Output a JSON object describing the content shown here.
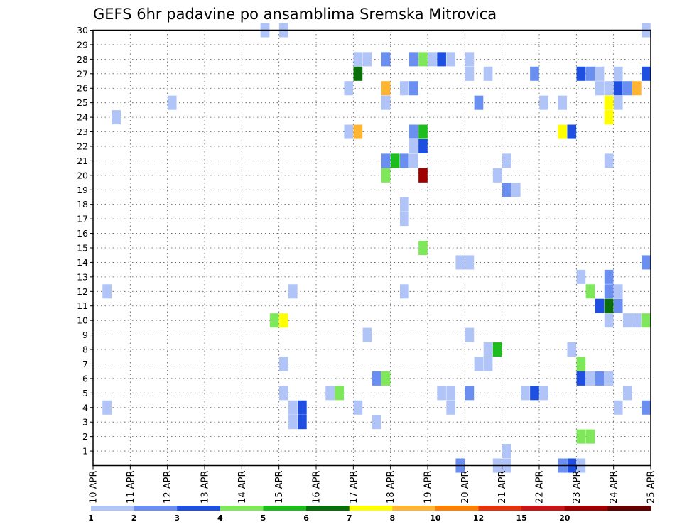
{
  "chart_data": {
    "type": "heatmap",
    "title": "GEFS 6hr padavine po ansamblima Sremska Mitrovica",
    "xlabel": "",
    "ylabel": "",
    "x_tick_labels": [
      "10 APR",
      "11 APR",
      "12 APR",
      "13 APR",
      "14 APR",
      "15 APR",
      "16 APR",
      "17 APR",
      "18 APR",
      "19 APR",
      "20 APR",
      "21 APR",
      "22 APR",
      "23 APR",
      "24 APR",
      "25 APR"
    ],
    "y_tick_labels": [
      "1",
      "2",
      "3",
      "4",
      "5",
      "6",
      "7",
      "8",
      "9",
      "10",
      "11",
      "12",
      "13",
      "14",
      "15",
      "16",
      "17",
      "18",
      "19",
      "20",
      "21",
      "22",
      "23",
      "24",
      "25",
      "26",
      "27",
      "28",
      "29",
      "30"
    ],
    "xlim": [
      0,
      15
    ],
    "ylim": [
      0,
      30
    ],
    "grid": true,
    "color_scale": {
      "colors": [
        "#b0c4f7",
        "#6b8ff0",
        "#1f4fe0",
        "#7fe85a",
        "#1ebd1e",
        "#0a6e0a",
        "#ffff00",
        "#ffb532",
        "#ff7f00",
        "#e6320a",
        "#c81414",
        "#a00000",
        "#640000"
      ],
      "labels": [
        "1",
        "2",
        "3",
        "4",
        "5",
        "6",
        "7",
        "8",
        "10",
        "12",
        "15",
        "20"
      ]
    },
    "note": "each cell = one 6h step (x in days from 10 APR) for one ensemble member (y); value = precipitation class index",
    "cells": [
      {
        "x": 4.5,
        "y": 30,
        "c": 1
      },
      {
        "x": 5.0,
        "y": 30,
        "c": 1
      },
      {
        "x": 14.75,
        "y": 30,
        "c": 1
      },
      {
        "x": 7.0,
        "y": 28,
        "c": 1
      },
      {
        "x": 7.25,
        "y": 28,
        "c": 1
      },
      {
        "x": 7.75,
        "y": 28,
        "c": 2
      },
      {
        "x": 8.5,
        "y": 28,
        "c": 2
      },
      {
        "x": 8.75,
        "y": 28,
        "c": 4
      },
      {
        "x": 9.0,
        "y": 28,
        "c": 1
      },
      {
        "x": 9.25,
        "y": 28,
        "c": 3
      },
      {
        "x": 9.5,
        "y": 28,
        "c": 1
      },
      {
        "x": 10.0,
        "y": 28,
        "c": 1
      },
      {
        "x": 7.0,
        "y": 27,
        "c": 6
      },
      {
        "x": 10.0,
        "y": 27,
        "c": 1
      },
      {
        "x": 10.5,
        "y": 27,
        "c": 1
      },
      {
        "x": 11.75,
        "y": 27,
        "c": 2
      },
      {
        "x": 13.0,
        "y": 27,
        "c": 3
      },
      {
        "x": 13.25,
        "y": 27,
        "c": 2
      },
      {
        "x": 13.5,
        "y": 27,
        "c": 1
      },
      {
        "x": 14.0,
        "y": 27,
        "c": 1
      },
      {
        "x": 14.75,
        "y": 27,
        "c": 3
      },
      {
        "x": 6.75,
        "y": 26,
        "c": 1
      },
      {
        "x": 7.75,
        "y": 26,
        "c": 8
      },
      {
        "x": 8.25,
        "y": 26,
        "c": 1
      },
      {
        "x": 8.5,
        "y": 26,
        "c": 2
      },
      {
        "x": 13.5,
        "y": 26,
        "c": 1
      },
      {
        "x": 13.75,
        "y": 26,
        "c": 1
      },
      {
        "x": 14.0,
        "y": 26,
        "c": 3
      },
      {
        "x": 14.25,
        "y": 26,
        "c": 2
      },
      {
        "x": 14.5,
        "y": 26,
        "c": 8
      },
      {
        "x": 2.0,
        "y": 25,
        "c": 1
      },
      {
        "x": 7.75,
        "y": 25,
        "c": 1
      },
      {
        "x": 10.25,
        "y": 25,
        "c": 2
      },
      {
        "x": 12.0,
        "y": 25,
        "c": 1
      },
      {
        "x": 12.5,
        "y": 25,
        "c": 1
      },
      {
        "x": 13.75,
        "y": 25,
        "c": 7
      },
      {
        "x": 14.0,
        "y": 25,
        "c": 1
      },
      {
        "x": 0.5,
        "y": 24,
        "c": 1
      },
      {
        "x": 13.75,
        "y": 24,
        "c": 7
      },
      {
        "x": 6.75,
        "y": 23,
        "c": 1
      },
      {
        "x": 7.0,
        "y": 23,
        "c": 8
      },
      {
        "x": 8.5,
        "y": 23,
        "c": 2
      },
      {
        "x": 8.75,
        "y": 23,
        "c": 5
      },
      {
        "x": 12.5,
        "y": 23,
        "c": 7
      },
      {
        "x": 12.75,
        "y": 23,
        "c": 3
      },
      {
        "x": 8.5,
        "y": 22,
        "c": 1
      },
      {
        "x": 8.75,
        "y": 22,
        "c": 3
      },
      {
        "x": 7.75,
        "y": 21,
        "c": 2
      },
      {
        "x": 8.0,
        "y": 21,
        "c": 5
      },
      {
        "x": 8.25,
        "y": 21,
        "c": 2
      },
      {
        "x": 8.5,
        "y": 21,
        "c": 1
      },
      {
        "x": 11.0,
        "y": 21,
        "c": 1
      },
      {
        "x": 13.75,
        "y": 21,
        "c": 1
      },
      {
        "x": 7.75,
        "y": 20,
        "c": 4
      },
      {
        "x": 8.75,
        "y": 20,
        "c": 12
      },
      {
        "x": 10.75,
        "y": 20,
        "c": 1
      },
      {
        "x": 11.0,
        "y": 19,
        "c": 2
      },
      {
        "x": 11.25,
        "y": 19,
        "c": 1
      },
      {
        "x": 8.25,
        "y": 18,
        "c": 1
      },
      {
        "x": 8.25,
        "y": 17,
        "c": 1
      },
      {
        "x": 8.75,
        "y": 15,
        "c": 4
      },
      {
        "x": 9.75,
        "y": 14,
        "c": 1
      },
      {
        "x": 10.0,
        "y": 14,
        "c": 1
      },
      {
        "x": 14.75,
        "y": 14,
        "c": 2
      },
      {
        "x": 13.0,
        "y": 13,
        "c": 1
      },
      {
        "x": 13.75,
        "y": 13,
        "c": 2
      },
      {
        "x": 0.25,
        "y": 12,
        "c": 1
      },
      {
        "x": 5.25,
        "y": 12,
        "c": 1
      },
      {
        "x": 8.25,
        "y": 12,
        "c": 1
      },
      {
        "x": 13.25,
        "y": 12,
        "c": 4
      },
      {
        "x": 13.75,
        "y": 12,
        "c": 2
      },
      {
        "x": 14.0,
        "y": 12,
        "c": 1
      },
      {
        "x": 13.5,
        "y": 11,
        "c": 3
      },
      {
        "x": 13.75,
        "y": 11,
        "c": 6
      },
      {
        "x": 14.0,
        "y": 11,
        "c": 2
      },
      {
        "x": 4.75,
        "y": 10,
        "c": 4
      },
      {
        "x": 5.0,
        "y": 10,
        "c": 7
      },
      {
        "x": 13.75,
        "y": 10,
        "c": 1
      },
      {
        "x": 14.25,
        "y": 10,
        "c": 1
      },
      {
        "x": 14.5,
        "y": 10,
        "c": 1
      },
      {
        "x": 14.75,
        "y": 10,
        "c": 4
      },
      {
        "x": 7.25,
        "y": 9,
        "c": 1
      },
      {
        "x": 10.0,
        "y": 9,
        "c": 1
      },
      {
        "x": 10.5,
        "y": 8,
        "c": 1
      },
      {
        "x": 10.75,
        "y": 8,
        "c": 5
      },
      {
        "x": 12.75,
        "y": 8,
        "c": 1
      },
      {
        "x": 5.0,
        "y": 7,
        "c": 1
      },
      {
        "x": 10.25,
        "y": 7,
        "c": 1
      },
      {
        "x": 10.5,
        "y": 7,
        "c": 1
      },
      {
        "x": 13.0,
        "y": 7,
        "c": 4
      },
      {
        "x": 7.5,
        "y": 6,
        "c": 2
      },
      {
        "x": 7.75,
        "y": 6,
        "c": 4
      },
      {
        "x": 13.0,
        "y": 6,
        "c": 3
      },
      {
        "x": 13.25,
        "y": 6,
        "c": 1
      },
      {
        "x": 13.5,
        "y": 6,
        "c": 2
      },
      {
        "x": 13.75,
        "y": 6,
        "c": 1
      },
      {
        "x": 5.0,
        "y": 5,
        "c": 1
      },
      {
        "x": 6.25,
        "y": 5,
        "c": 1
      },
      {
        "x": 6.5,
        "y": 5,
        "c": 4
      },
      {
        "x": 9.25,
        "y": 5,
        "c": 1
      },
      {
        "x": 9.5,
        "y": 5,
        "c": 1
      },
      {
        "x": 10.0,
        "y": 5,
        "c": 2
      },
      {
        "x": 11.5,
        "y": 5,
        "c": 1
      },
      {
        "x": 11.75,
        "y": 5,
        "c": 3
      },
      {
        "x": 12.0,
        "y": 5,
        "c": 1
      },
      {
        "x": 14.25,
        "y": 5,
        "c": 1
      },
      {
        "x": 0.25,
        "y": 4,
        "c": 1
      },
      {
        "x": 5.25,
        "y": 4,
        "c": 1
      },
      {
        "x": 5.5,
        "y": 4,
        "c": 3
      },
      {
        "x": 7.0,
        "y": 4,
        "c": 1
      },
      {
        "x": 9.5,
        "y": 4,
        "c": 1
      },
      {
        "x": 14.0,
        "y": 4,
        "c": 1
      },
      {
        "x": 14.75,
        "y": 4,
        "c": 2
      },
      {
        "x": 5.25,
        "y": 3,
        "c": 1
      },
      {
        "x": 5.5,
        "y": 3,
        "c": 3
      },
      {
        "x": 7.5,
        "y": 3,
        "c": 1
      },
      {
        "x": 13.0,
        "y": 2,
        "c": 4
      },
      {
        "x": 13.25,
        "y": 2,
        "c": 4
      },
      {
        "x": 11.0,
        "y": 1,
        "c": 1
      },
      {
        "x": 9.75,
        "y": 0,
        "c": 2
      },
      {
        "x": 10.75,
        "y": 0,
        "c": 1
      },
      {
        "x": 11.0,
        "y": 0,
        "c": 1
      },
      {
        "x": 12.5,
        "y": 0,
        "c": 2
      },
      {
        "x": 12.75,
        "y": 0,
        "c": 3
      },
      {
        "x": 13.0,
        "y": 0,
        "c": 1
      }
    ]
  }
}
